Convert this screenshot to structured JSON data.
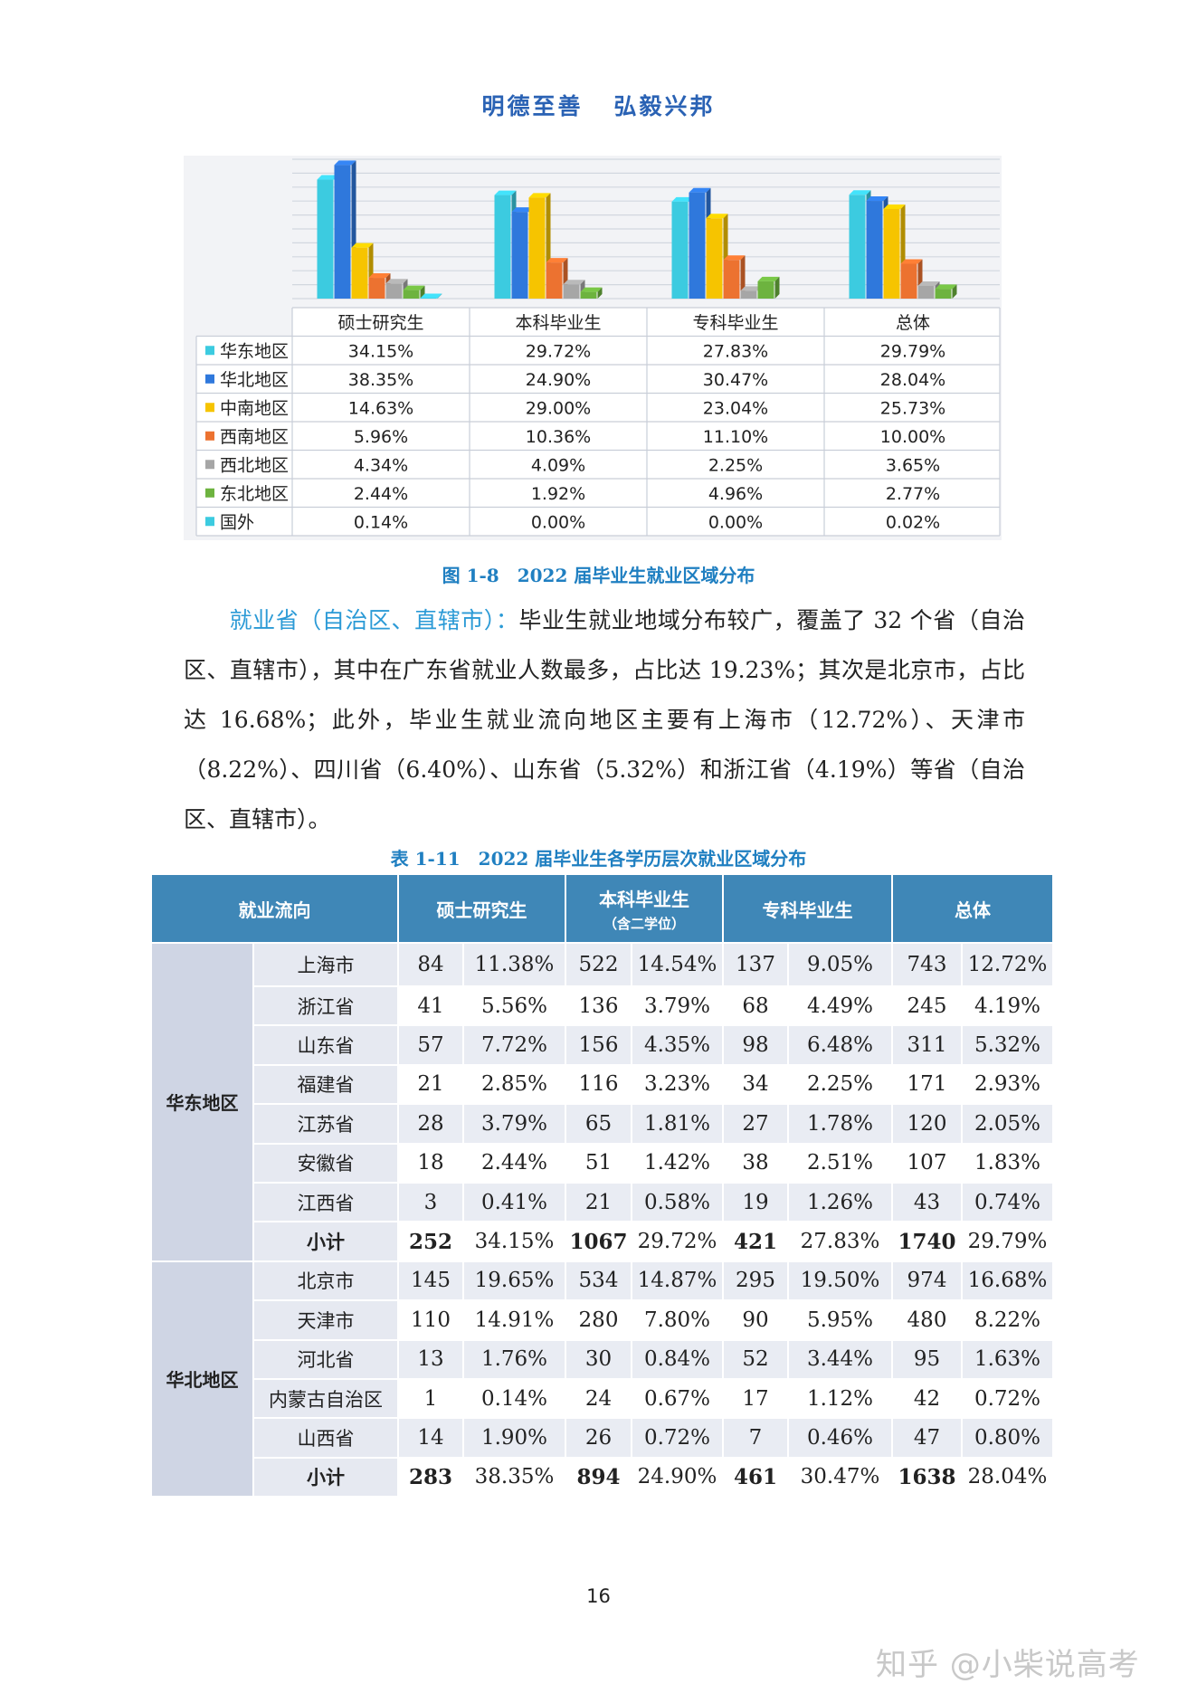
{
  "header": {
    "motto_1": "明德至善",
    "motto_2": "弘毅兴邦"
  },
  "figure_caption": "图 1-8　2022 届毕业生就业区域分布",
  "chart_data": {
    "type": "bar",
    "categories": [
      "硕士研究生",
      "本科毕业生",
      "专科毕业生",
      "总体"
    ],
    "series": [
      {
        "name": "华东地区",
        "color": "#3ccbe0",
        "values": [
          34.15,
          29.72,
          27.83,
          29.79
        ],
        "labels": [
          "34.15%",
          "29.72%",
          "27.83%",
          "29.79%"
        ]
      },
      {
        "name": "华北地区",
        "color": "#2f78dc",
        "values": [
          38.35,
          24.9,
          30.47,
          28.04
        ],
        "labels": [
          "38.35%",
          "24.90%",
          "30.47%",
          "28.04%"
        ]
      },
      {
        "name": "中南地区",
        "color": "#f6c400",
        "values": [
          14.63,
          29.0,
          23.04,
          25.73
        ],
        "labels": [
          "14.63%",
          "29.00%",
          "23.04%",
          "25.73%"
        ]
      },
      {
        "name": "西南地区",
        "color": "#ec7230",
        "values": [
          5.96,
          10.36,
          11.1,
          10.0
        ],
        "labels": [
          "5.96%",
          "10.36%",
          "11.10%",
          "10.00%"
        ]
      },
      {
        "name": "西北地区",
        "color": "#a6a6a6",
        "values": [
          4.34,
          4.09,
          2.25,
          3.65
        ],
        "labels": [
          "4.34%",
          "4.09%",
          "2.25%",
          "3.65%"
        ]
      },
      {
        "name": "东北地区",
        "color": "#6db33f",
        "values": [
          2.44,
          1.92,
          4.96,
          2.77
        ],
        "labels": [
          "2.44%",
          "1.92%",
          "4.96%",
          "2.77%"
        ]
      },
      {
        "name": "国外",
        "color": "#3ccbe0",
        "values": [
          0.14,
          0.0,
          0.0,
          0.02
        ],
        "labels": [
          "0.14%",
          "0.00%",
          "0.00%",
          "0.02%"
        ]
      }
    ],
    "ylim": [
      0,
      40
    ],
    "grid": true,
    "legend": "data-table"
  },
  "paragraph": {
    "lead": "就业省（自治区、直辖市）：",
    "body": "毕业生就业地域分布较广，覆盖了 32 个省（自治区、直辖市），其中在广东省就业人数最多，占比达 19.23%；其次是北京市，占比达 16.68%；此外，毕业生就业流向地区主要有上海市（12.72%）、天津市（8.22%）、四川省（6.40%）、山东省（5.32%）和浙江省（4.19%）等省（自治区、直辖市）。"
  },
  "table_caption": "表 1-11　2022 届毕业生各学历层次就业区域分布",
  "table": {
    "headers": {
      "flow": "就业流向",
      "master": "硕士研究生",
      "bachelor": "本科毕业生",
      "bachelor_note": "（含二学位）",
      "college": "专科毕业生",
      "total": "总体"
    },
    "groups": [
      {
        "region": "华东地区",
        "rows": [
          [
            "上海市",
            "84",
            "11.38%",
            "522",
            "14.54%",
            "137",
            "9.05%",
            "743",
            "12.72%"
          ],
          [
            "浙江省",
            "41",
            "5.56%",
            "136",
            "3.79%",
            "68",
            "4.49%",
            "245",
            "4.19%"
          ],
          [
            "山东省",
            "57",
            "7.72%",
            "156",
            "4.35%",
            "98",
            "6.48%",
            "311",
            "5.32%"
          ],
          [
            "福建省",
            "21",
            "2.85%",
            "116",
            "3.23%",
            "34",
            "2.25%",
            "171",
            "2.93%"
          ],
          [
            "江苏省",
            "28",
            "3.79%",
            "65",
            "1.81%",
            "27",
            "1.78%",
            "120",
            "2.05%"
          ],
          [
            "安徽省",
            "18",
            "2.44%",
            "51",
            "1.42%",
            "38",
            "2.51%",
            "107",
            "1.83%"
          ],
          [
            "江西省",
            "3",
            "0.41%",
            "21",
            "0.58%",
            "19",
            "1.26%",
            "43",
            "0.74%"
          ]
        ],
        "subtotal": [
          "小计",
          "252",
          "34.15%",
          "1067",
          "29.72%",
          "421",
          "27.83%",
          "1740",
          "29.79%"
        ]
      },
      {
        "region": "华北地区",
        "rows": [
          [
            "北京市",
            "145",
            "19.65%",
            "534",
            "14.87%",
            "295",
            "19.50%",
            "974",
            "16.68%"
          ],
          [
            "天津市",
            "110",
            "14.91%",
            "280",
            "7.80%",
            "90",
            "5.95%",
            "480",
            "8.22%"
          ],
          [
            "河北省",
            "13",
            "1.76%",
            "30",
            "0.84%",
            "52",
            "3.44%",
            "95",
            "1.63%"
          ],
          [
            "内蒙古自治区",
            "1",
            "0.14%",
            "24",
            "0.67%",
            "17",
            "1.12%",
            "42",
            "0.72%"
          ],
          [
            "山西省",
            "14",
            "1.90%",
            "26",
            "0.72%",
            "7",
            "0.46%",
            "47",
            "0.80%"
          ]
        ],
        "subtotal": [
          "小计",
          "283",
          "38.35%",
          "894",
          "24.90%",
          "461",
          "30.47%",
          "1638",
          "28.04%"
        ]
      }
    ]
  },
  "page_number": "16",
  "watermark": "知乎 @小柴说高考"
}
